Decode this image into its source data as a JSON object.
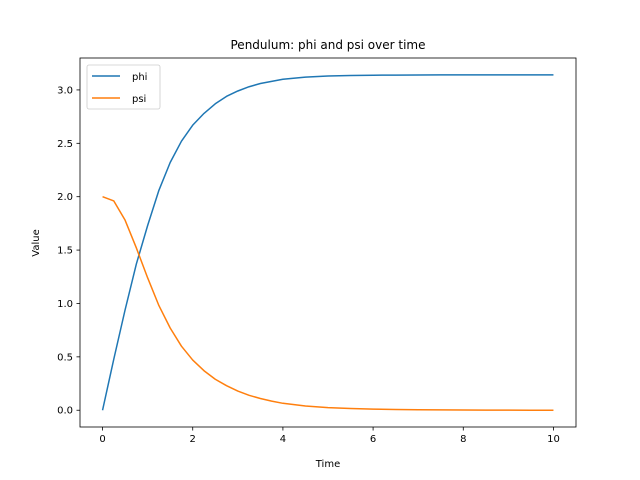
{
  "chart_data": {
    "type": "line",
    "title": "Pendulum: phi and psi over time",
    "xlabel": "Time",
    "ylabel": "Value",
    "xlim": [
      -0.5,
      10.5
    ],
    "ylim": [
      -0.157,
      3.299
    ],
    "xticks": [
      0,
      2,
      4,
      6,
      8,
      10
    ],
    "yticks": [
      0.0,
      0.5,
      1.0,
      1.5,
      2.0,
      2.5,
      3.0
    ],
    "xtick_labels": [
      "0",
      "2",
      "4",
      "6",
      "8",
      "10"
    ],
    "ytick_labels": [
      "0.0",
      "0.5",
      "1.0",
      "1.5",
      "2.0",
      "2.5",
      "3.0"
    ],
    "grid": false,
    "legend_position": "top-left",
    "x": [
      0,
      0.25,
      0.5,
      0.75,
      1,
      1.25,
      1.5,
      1.75,
      2,
      2.25,
      2.5,
      2.75,
      3,
      3.25,
      3.5,
      3.75,
      4,
      4.5,
      5,
      5.5,
      6,
      6.5,
      7,
      7.5,
      8,
      8.5,
      9,
      9.5,
      10
    ],
    "series": [
      {
        "name": "phi",
        "color": "#1f77b4",
        "values": [
          0.0,
          0.48,
          0.94,
          1.37,
          1.73,
          2.06,
          2.32,
          2.52,
          2.67,
          2.78,
          2.87,
          2.94,
          2.99,
          3.03,
          3.06,
          3.08,
          3.1,
          3.12,
          3.13,
          3.135,
          3.138,
          3.139,
          3.14,
          3.141,
          3.141,
          3.141,
          3.141,
          3.141,
          3.141
        ]
      },
      {
        "name": "psi",
        "color": "#ff7f0e",
        "values": [
          2.0,
          1.96,
          1.78,
          1.52,
          1.24,
          0.98,
          0.77,
          0.6,
          0.47,
          0.37,
          0.29,
          0.23,
          0.18,
          0.14,
          0.11,
          0.085,
          0.065,
          0.04,
          0.025,
          0.016,
          0.01,
          0.007,
          0.005,
          0.003,
          0.002,
          0.001,
          0.001,
          0.0,
          0.0
        ]
      }
    ]
  }
}
